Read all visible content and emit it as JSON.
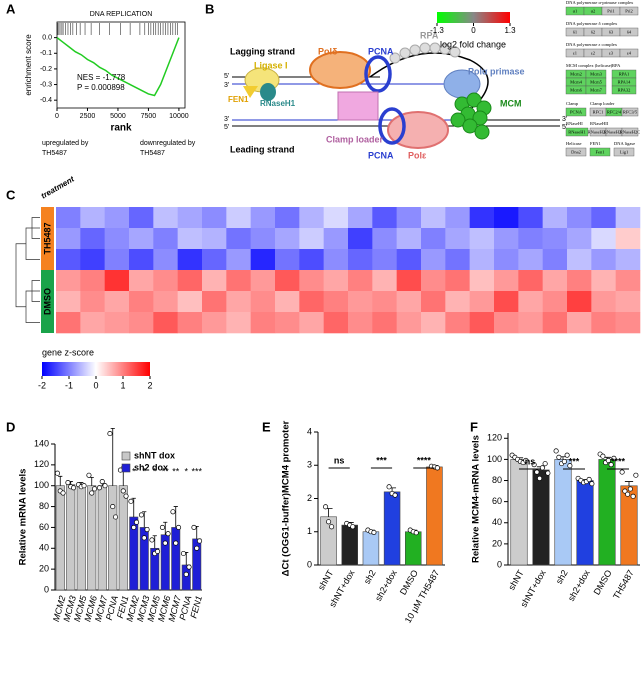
{
  "panel_labels": [
    "A",
    "B",
    "C",
    "D",
    "E",
    "F"
  ],
  "diagram": {
    "lagging": "Lagging strand",
    "leading": "Leading strand",
    "ligase": "Ligase I",
    "fen1": "FEN1",
    "rnaseh1": "RNaseH1",
    "pol_delta": "Polδ",
    "pcna_top": "PCNA",
    "rpa": "RPA",
    "pol_alpha": "Polα primase",
    "mcm": "MCM",
    "clamp_loader": "Clamp loader",
    "pcna_bottom": "PCNA",
    "pol_epsilon": "Polε",
    "five_prime": "5'",
    "three_prime": "3'",
    "fold_change": {
      "label": "log2 fold change",
      "lim": [
        -1.3,
        1.3
      ],
      "ticks": [
        -1.3,
        0,
        1.3
      ]
    },
    "kegg": [
      {
        "title": "DNA polymerase α-primase complex",
        "items": [
          {
            "label": "α1",
            "color": "#5fd35f"
          },
          {
            "label": "α2",
            "color": "#5fd35f"
          },
          {
            "label": "Pri1",
            "color": "#c8c8c8"
          },
          {
            "label": "Pri2",
            "color": "#c8c8c8"
          }
        ]
      },
      {
        "title": "DNA polymerase δ complex",
        "items": [
          {
            "label": "δ1",
            "color": "#c8c8c8"
          },
          {
            "label": "δ2",
            "color": "#c8c8c8"
          },
          {
            "label": "δ3",
            "color": "#c8c8c8"
          },
          {
            "label": "δ4",
            "color": "#c8c8c8"
          }
        ]
      },
      {
        "title": "DNA polymerase ε complex",
        "items": [
          {
            "label": "ε1",
            "color": "#c8c8c8"
          },
          {
            "label": "ε2",
            "color": "#c8c8c8"
          },
          {
            "label": "ε3",
            "color": "#c8c8c8"
          },
          {
            "label": "ε4",
            "color": "#c8c8c8"
          }
        ]
      },
      {
        "title": "MCM complex (helicase)",
        "items": [
          {
            "label": "Mcm2",
            "color": "#5fd35f"
          },
          {
            "label": "Mcm3",
            "color": "#5fd35f"
          },
          {
            "label": "Mcm4",
            "color": "#5fd35f"
          },
          {
            "label": "Mcm5",
            "color": "#5fd35f"
          },
          {
            "label": "Mcm6",
            "color": "#5fd35f"
          },
          {
            "label": "Mcm7",
            "color": "#5fd35f"
          }
        ]
      },
      {
        "title": "RPA",
        "items": [
          {
            "label": "RPA1",
            "color": "#5fd35f"
          },
          {
            "label": "RPA14",
            "color": "#5fd35f"
          },
          {
            "label": "RPA32",
            "color": "#5fd35f"
          }
        ]
      },
      {
        "title": "Clamp",
        "items": [
          {
            "label": "PCNA",
            "color": "#5fd35f"
          }
        ]
      },
      {
        "title": "Clamp loader",
        "items": [
          {
            "label": "RFC1",
            "color": "#c8c8c8"
          },
          {
            "label": "RFC2/4",
            "color": "#5fd35f"
          },
          {
            "label": "RFC3/5",
            "color": "#c8c8c8"
          }
        ]
      },
      {
        "title": "RNaseHI",
        "items": [
          {
            "label": "RNaseH1",
            "color": "#5fd35f"
          }
        ]
      },
      {
        "title": "RNaseHII",
        "items": [
          {
            "label": "RNaseH2A",
            "color": "#c8c8c8"
          },
          {
            "label": "RNaseH2B",
            "color": "#c8c8c8"
          },
          {
            "label": "RNaseH2C",
            "color": "#c8c8c8"
          }
        ]
      },
      {
        "title": "Helicase",
        "items": [
          {
            "label": "Dna2",
            "color": "#c8c8c8"
          }
        ]
      },
      {
        "title": "FEN1",
        "items": [
          {
            "label": "Fen1",
            "color": "#5fd35f"
          }
        ]
      },
      {
        "title": "DNA ligase",
        "items": [
          {
            "label": "Lig1",
            "color": "#c8c8c8"
          }
        ]
      }
    ]
  },
  "chart_data": [
    {
      "type": "gsea",
      "title": "DNA REPLICATION",
      "x_label": "rank",
      "y_label": "enrichment score",
      "annotations": [
        "NES = -1.778",
        "P = 0.000898"
      ],
      "left_label": "upregulated by TH5487",
      "right_label": "downregulated by TH5487",
      "color": "#22cc22",
      "x": [
        0,
        500,
        1000,
        1500,
        2000,
        2500,
        3000,
        3500,
        4000,
        4500,
        5000,
        5500,
        6000,
        6500,
        7000,
        7500,
        8000,
        8500,
        9000,
        9500,
        10000
      ],
      "values": [
        0,
        -0.03,
        -0.06,
        -0.09,
        -0.11,
        -0.14,
        -0.16,
        -0.19,
        -0.21,
        -0.24,
        -0.26,
        -0.28,
        -0.3,
        -0.32,
        -0.34,
        -0.36,
        -0.37,
        -0.3,
        -0.2,
        -0.1,
        0
      ],
      "hits": [
        50,
        150,
        250,
        400,
        500,
        700,
        900,
        1100,
        1300,
        1600,
        1900,
        2300,
        2800,
        3500,
        4300,
        5200,
        6000,
        6800,
        7200,
        7500,
        7700,
        7900,
        8100,
        8300,
        8500,
        8700,
        8900,
        9100,
        9300,
        9500,
        9700,
        9900
      ],
      "xlim": [
        0,
        10500
      ],
      "xticks": [
        0,
        2500,
        5000,
        7500,
        10000
      ],
      "ylim": [
        -0.45,
        0.1
      ],
      "yticks": [
        {
          "value": 0,
          "label": "0.0"
        },
        -0.1,
        -0.2,
        -0.3,
        -0.4
      ]
    },
    {
      "type": "heatmap",
      "row_group_title": "treatment",
      "colorbar_title": "gene z-score",
      "zlim": [
        -2,
        2
      ],
      "zticks": [
        -2,
        -1,
        0,
        1,
        2
      ],
      "colors": [
        "#0000ff",
        "#ffffff",
        "#ff0000"
      ],
      "groups": [
        {
          "name": "TH5487",
          "color": "#f58220",
          "values": [
            [
              -1.0,
              -0.6,
              -0.8,
              -1.2,
              -0.5,
              -0.7,
              -0.9,
              -0.4,
              -0.8,
              -1.1,
              -0.6,
              -0.3,
              -0.7,
              -1.3,
              -0.9,
              -0.5,
              -0.8,
              -1.6,
              -1.8,
              -1.4,
              -0.6,
              -0.9,
              -1.2,
              -0.5
            ],
            [
              -0.8,
              -1.2,
              -0.9,
              -0.7,
              -1.0,
              -0.5,
              -0.6,
              -1.1,
              -0.9,
              -0.7,
              -0.4,
              -0.8,
              -1.5,
              -0.9,
              -0.6,
              -1.0,
              -0.7,
              -0.5,
              -0.8,
              -1.0,
              -0.9,
              -0.7,
              -0.3,
              0.4
            ],
            [
              -1.3,
              -1.5,
              -1.0,
              -1.4,
              -0.9,
              -1.6,
              -1.2,
              -0.8,
              -1.7,
              -1.1,
              -1.4,
              -0.9,
              -1.2,
              -1.0,
              -1.3,
              -0.8,
              -1.1,
              -0.6,
              -0.9,
              -0.7,
              -1.0,
              -0.5,
              -0.8,
              -0.6
            ]
          ]
        },
        {
          "name": "DMSO",
          "color": "#1aa34a",
          "values": [
            [
              0.8,
              1.0,
              1.6,
              0.7,
              0.9,
              1.2,
              0.6,
              1.1,
              0.8,
              1.3,
              0.9,
              0.7,
              1.0,
              0.6,
              1.4,
              0.9,
              1.1,
              0.5,
              0.8,
              1.2,
              0.7,
              1.0,
              0.6,
              0.9
            ],
            [
              0.6,
              0.9,
              0.7,
              1.0,
              0.8,
              0.5,
              1.1,
              0.7,
              0.9,
              0.6,
              1.2,
              1.0,
              0.8,
              0.9,
              0.7,
              1.1,
              0.6,
              0.8,
              1.4,
              0.7,
              0.9,
              1.5,
              0.8,
              0.7
            ],
            [
              1.1,
              0.7,
              0.8,
              0.9,
              1.3,
              1.0,
              0.8,
              0.6,
              1.0,
              0.9,
              0.7,
              1.2,
              0.9,
              1.1,
              0.8,
              0.6,
              1.0,
              1.3,
              0.9,
              0.8,
              1.1,
              0.7,
              1.0,
              0.9
            ]
          ]
        }
      ]
    },
    {
      "type": "bar",
      "y_label": "Relative mRNA levels",
      "legend": "upper right",
      "categories": [
        "MCM2",
        "MCM3",
        "MCM5",
        "MCM6",
        "MCM7",
        "PCNA",
        "FEN1"
      ],
      "series": [
        {
          "name": "shNT dox",
          "color": "#c8c8c8",
          "values": [
            100,
            101,
            100,
            100,
            100,
            100,
            100
          ],
          "errors": [
            9,
            3,
            3,
            8,
            5,
            55,
            18
          ],
          "points": [
            [
              112,
              95,
              93
            ],
            [
              103,
              99,
              98
            ],
            [
              101,
              99,
              100
            ],
            [
              110,
              93,
              97
            ],
            [
              98,
              104,
              100
            ],
            [
              150,
              80,
              70
            ],
            [
              115,
              95,
              90
            ]
          ]
        },
        {
          "name": "sh2 dox",
          "color": "#1f1fd6",
          "values": [
            70,
            60,
            40,
            53,
            60,
            24,
            49
          ],
          "errors": [
            18,
            15,
            12,
            12,
            20,
            12,
            12
          ],
          "points": [
            [
              85,
              60,
              65
            ],
            [
              72,
              50,
              58
            ],
            [
              48,
              35,
              37
            ],
            [
              60,
              45,
              54
            ],
            [
              75,
              45,
              60
            ],
            [
              35,
              15,
              22
            ],
            [
              60,
              40,
              47
            ]
          ],
          "significance": [
            "*",
            "*",
            "*",
            "**",
            "**",
            "*",
            "***"
          ]
        }
      ],
      "ylim": [
        0,
        140
      ],
      "yticks": [
        0,
        20,
        40,
        60,
        80,
        100,
        120,
        140
      ]
    },
    {
      "type": "bar",
      "y_label": "ΔCt (OGG1-buffer)MCM4 promoter",
      "categories": [
        "shNT",
        "shNT+dox",
        "sh2",
        "sh2+dox",
        "DMSO",
        "10 µM TH5487"
      ],
      "colors": [
        "#cccccc",
        "#222222",
        "#a9c9f5",
        "#2040e0",
        "#22b022",
        "#f07820"
      ],
      "values": [
        1.45,
        1.2,
        1.0,
        2.2,
        1.0,
        2.95
      ],
      "errors": [
        0.25,
        0.08,
        0.05,
        0.12,
        0.05,
        0.04
      ],
      "points": [
        [
          1.75,
          1.3,
          1.15
        ],
        [
          1.25,
          1.2,
          1.15
        ],
        [
          1.05,
          1.0,
          0.98
        ],
        [
          2.35,
          2.15,
          2.1
        ],
        [
          1.05,
          1.0,
          0.97
        ],
        [
          2.97,
          2.95,
          2.92
        ]
      ],
      "significance": [
        "ns",
        "***",
        "****"
      ],
      "ylim": [
        0,
        4
      ],
      "yticks": [
        0,
        1,
        2,
        3,
        4
      ]
    },
    {
      "type": "bar",
      "y_label": "Relative MCM4-mRNA levels",
      "categories": [
        "shNT",
        "shNT+dox",
        "sh2",
        "sh2+dox",
        "DMSO",
        "TH5487"
      ],
      "colors": [
        "#cccccc",
        "#222222",
        "#a9c9f5",
        "#2040e0",
        "#22b022",
        "#f07820"
      ],
      "values": [
        100,
        90,
        100,
        80,
        100,
        75
      ],
      "errors": [
        1.5,
        3,
        2.5,
        1,
        2,
        4
      ],
      "points": [
        [
          104,
          102,
          100,
          98,
          97,
          99
        ],
        [
          95,
          88,
          82,
          92,
          96,
          87
        ],
        [
          108,
          102,
          96,
          98,
          104,
          94
        ],
        [
          82,
          80,
          78,
          79,
          81,
          77
        ],
        [
          105,
          103,
          97,
          99,
          95,
          101
        ],
        [
          88,
          70,
          67,
          72,
          65,
          85
        ]
      ],
      "significance": [
        "ns",
        "***",
        "****"
      ],
      "ylim": [
        0,
        125
      ],
      "yticks": [
        0,
        20,
        40,
        60,
        80,
        100,
        120
      ]
    }
  ]
}
